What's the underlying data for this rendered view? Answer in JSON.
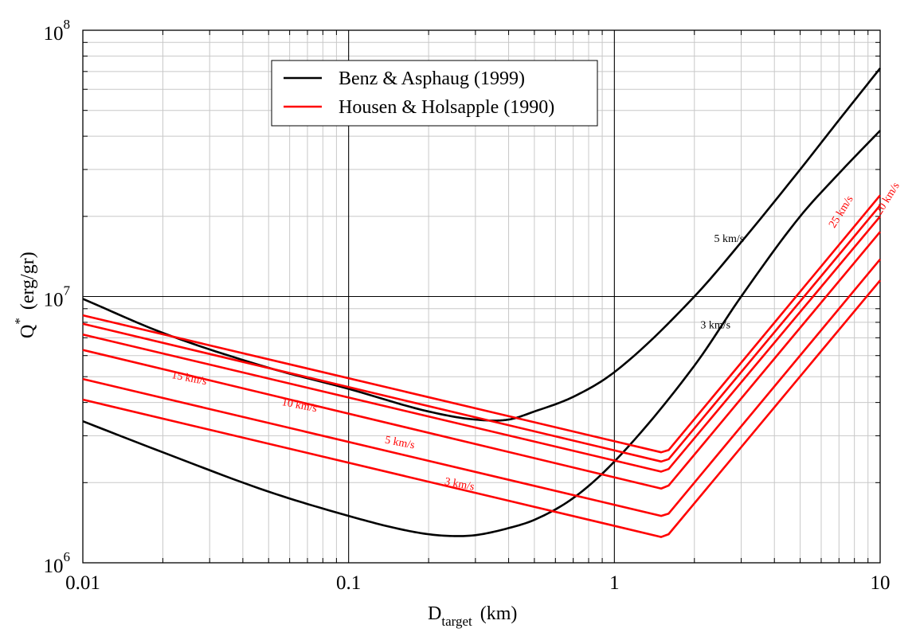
{
  "chart_data": {
    "type": "line",
    "x_scale": "log",
    "y_scale": "log",
    "xlim": [
      0.01,
      10
    ],
    "ylim": [
      1000000,
      100000000
    ],
    "grid": true,
    "xlabel": {
      "main": "D",
      "sub": "target",
      "unit": "(km)"
    },
    "ylabel": {
      "main": "Q",
      "sup": "*",
      "unit": "(erg/gr)"
    },
    "x_ticks": [
      {
        "value": 0.01,
        "label": "0.01"
      },
      {
        "value": 0.1,
        "label": "0.1"
      },
      {
        "value": 1,
        "label": "1"
      },
      {
        "value": 10,
        "label": "10"
      }
    ],
    "y_ticks": [
      {
        "value": 1000000,
        "base": "10",
        "exp": "6"
      },
      {
        "value": 10000000,
        "base": "10",
        "exp": "7"
      },
      {
        "value": 100000000,
        "base": "10",
        "exp": "8"
      }
    ],
    "legend": {
      "position": "top-center",
      "entries": [
        {
          "name": "Benz & Asphaug (1999)",
          "color": "#000000"
        },
        {
          "name": "Housen & Holsapple (1990)",
          "color": "#ff0000"
        }
      ]
    },
    "series": [
      {
        "group": "Benz & Asphaug (1999)",
        "color": "#000000",
        "x": [
          0.01,
          0.02,
          0.05,
          0.1,
          0.2,
          0.3,
          0.4,
          0.5,
          0.7,
          1,
          2,
          3,
          5,
          7,
          10
        ],
        "y": [
          9800000,
          7300000,
          5400000,
          4500000,
          3700000,
          3450000,
          3450000,
          3700000,
          4200000,
          5200000,
          10000000,
          16000000,
          30000000,
          46000000,
          72000000
        ]
      },
      {
        "group": "Benz & Asphaug (1999)",
        "color": "#000000",
        "x": [
          0.01,
          0.02,
          0.05,
          0.1,
          0.15,
          0.2,
          0.25,
          0.3,
          0.4,
          0.5,
          0.7,
          1,
          2,
          3,
          5,
          7,
          10
        ],
        "y": [
          3400000,
          2600000,
          1850000,
          1500000,
          1350000,
          1280000,
          1260000,
          1270000,
          1350000,
          1450000,
          1750000,
          2400000,
          5500000,
          10000000,
          20000000,
          29000000,
          42000000
        ]
      },
      {
        "group": "Housen & Holsapple (1990)",
        "color": "#ff0000",
        "x": [
          0.01,
          1.5,
          1.6,
          10
        ],
        "y": [
          8500000,
          2600000,
          2650000,
          24000000
        ]
      },
      {
        "group": "Housen & Holsapple (1990)",
        "color": "#ff0000",
        "x": [
          0.01,
          1.5,
          1.6,
          10
        ],
        "y": [
          7900000,
          2400000,
          2450000,
          22000000
        ]
      },
      {
        "group": "Housen & Holsapple (1990)",
        "color": "#ff0000",
        "x": [
          0.01,
          1.5,
          1.6,
          10
        ],
        "y": [
          7200000,
          2200000,
          2250000,
          20000000
        ]
      },
      {
        "group": "Housen & Holsapple (1990)",
        "color": "#ff0000",
        "x": [
          0.01,
          1.5,
          1.6,
          10
        ],
        "y": [
          6300000,
          1900000,
          1950000,
          17500000
        ]
      },
      {
        "group": "Housen & Holsapple (1990)",
        "color": "#ff0000",
        "x": [
          0.01,
          1.5,
          1.6,
          10
        ],
        "y": [
          4900000,
          1500000,
          1530000,
          13800000
        ]
      },
      {
        "group": "Housen & Holsapple (1990)",
        "color": "#ff0000",
        "x": [
          0.01,
          1.5,
          1.6,
          10
        ],
        "y": [
          4100000,
          1250000,
          1280000,
          11500000
        ]
      }
    ],
    "annotations": [
      {
        "text": "5 km/s",
        "x": 2.7,
        "y": 16000000,
        "color": "#000000",
        "rotate": 0
      },
      {
        "text": "3 km/s",
        "x": 2.4,
        "y": 7600000,
        "color": "#000000",
        "rotate": 0
      },
      {
        "text": "25 km/s",
        "x": 7.3,
        "y": 20500000,
        "color": "#ff0000",
        "rotate": -58
      },
      {
        "text": "20 km/s",
        "x": 10.9,
        "y": 23000000,
        "color": "#ff0000",
        "rotate": -58
      },
      {
        "text": "15 km/s",
        "x": 0.025,
        "y": 4800000,
        "color": "#ff0000",
        "rotate": 11
      },
      {
        "text": "10 km/s",
        "x": 0.065,
        "y": 3800000,
        "color": "#ff0000",
        "rotate": 11
      },
      {
        "text": "5 km/s",
        "x": 0.155,
        "y": 2750000,
        "color": "#ff0000",
        "rotate": 11
      },
      {
        "text": "3 km/s",
        "x": 0.26,
        "y": 1920000,
        "color": "#ff0000",
        "rotate": 11
      }
    ]
  }
}
